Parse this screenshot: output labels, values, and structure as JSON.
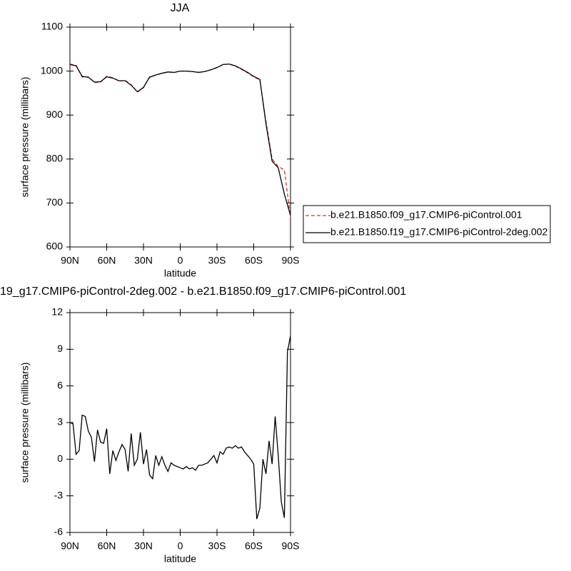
{
  "chart_data": [
    {
      "type": "line",
      "title": "JJA",
      "x_label": "latitude",
      "y_label": "surface pressure (millibars)",
      "x": [
        90,
        85,
        80,
        75,
        70,
        65,
        60,
        55,
        50,
        45,
        40,
        35,
        30,
        25,
        20,
        15,
        10,
        5,
        0,
        -5,
        -10,
        -15,
        -20,
        -25,
        -30,
        -35,
        -40,
        -45,
        -50,
        -55,
        -60,
        -65,
        -70,
        -75,
        -80,
        -85,
        -90
      ],
      "series": [
        {
          "name": "b.e21.B1850.f09_g17.CMIP6-piControl.001",
          "color": "#e03030",
          "dash": true,
          "values": [
            1016,
            1013,
            986,
            987,
            974,
            975,
            988,
            985,
            977,
            979,
            969,
            952,
            962,
            987,
            991,
            995,
            998,
            997,
            1000,
            1000,
            999,
            997,
            999,
            1003,
            1008,
            1015,
            1016,
            1011,
            1004,
            996,
            987,
            980,
            885,
            800,
            783,
            775,
            668
          ]
        },
        {
          "name": "b.e21.B1850.f19_g17.CMIP6-piControl-2deg.002",
          "color": "#000000",
          "dash": false,
          "values": [
            1015,
            1012,
            988,
            986,
            975,
            976,
            987,
            984,
            978,
            978,
            968,
            953,
            963,
            986,
            991,
            995,
            998,
            997,
            1000,
            1000,
            999,
            997,
            999,
            1003,
            1008,
            1015,
            1016,
            1012,
            1005,
            997,
            988,
            981,
            880,
            795,
            780,
            720,
            672
          ]
        }
      ],
      "xlim": [
        90,
        -90
      ],
      "ylim": [
        600,
        1100
      ],
      "xticks": [
        {
          "value": 90,
          "label": "90N"
        },
        {
          "value": 60,
          "label": "60N"
        },
        {
          "value": 30,
          "label": "30N"
        },
        0,
        {
          "value": -30,
          "label": "30S"
        },
        {
          "value": -60,
          "label": "60S"
        },
        {
          "value": -90,
          "label": "90S"
        }
      ],
      "yticks": [
        600,
        700,
        800,
        900,
        1000,
        1100
      ]
    },
    {
      "type": "line",
      "title": "19_g17.CMIP6-piControl-2deg.002 - b.e21.B1850.f09_g17.CMIP6-piControl.001",
      "x_label": "latitude",
      "y_label": "surface pressure (millibars)",
      "x": [
        90,
        87.5,
        85,
        82.5,
        80,
        77.5,
        75,
        72.5,
        70,
        67.5,
        65,
        62.5,
        60,
        57.5,
        55,
        52.5,
        50,
        47.5,
        45,
        42.5,
        40,
        37.5,
        35,
        32.5,
        30,
        27.5,
        25,
        22.5,
        20,
        17.5,
        15,
        12.5,
        10,
        7.5,
        5,
        2.5,
        0,
        -2.5,
        -5,
        -7.5,
        -10,
        -12.5,
        -15,
        -17.5,
        -20,
        -22.5,
        -25,
        -27.5,
        -30,
        -32.5,
        -35,
        -37.5,
        -40,
        -42.5,
        -45,
        -47.5,
        -50,
        -52.5,
        -55,
        -57.5,
        -60,
        -62.5,
        -65,
        -67.5,
        -70,
        -72.5,
        -75,
        -77.5,
        -80,
        -82.5,
        -85,
        -87.5,
        -90
      ],
      "series": [
        {
          "color": "#000000",
          "dash": false,
          "values": [
            3.0,
            2.9,
            0.4,
            0.7,
            3.6,
            3.5,
            2.3,
            1.8,
            -0.2,
            2.4,
            1.4,
            1.3,
            2.5,
            -1.2,
            0.7,
            -0.1,
            0.6,
            1.2,
            0.8,
            -1.0,
            2.1,
            -0.5,
            0.0,
            2.2,
            -0.4,
            0.8,
            -1.3,
            -1.6,
            0.3,
            -0.5,
            0.2,
            -0.5,
            -1.0,
            -0.3,
            -0.5,
            -0.6,
            -0.7,
            -0.8,
            -0.6,
            -0.8,
            -0.7,
            -0.9,
            -0.5,
            -0.5,
            -0.4,
            -0.3,
            0.0,
            0.3,
            -0.3,
            0.6,
            0.4,
            0.9,
            1.0,
            0.9,
            1.1,
            0.9,
            1.0,
            0.6,
            0.3,
            0.0,
            -0.4,
            -4.9,
            -4.0,
            0.0,
            -1.2,
            1.5,
            -0.4,
            3.5,
            0.3,
            -3.5,
            -4.8,
            8.8,
            10.1
          ]
        }
      ],
      "xlim": [
        90,
        -90
      ],
      "ylim": [
        -6,
        12
      ],
      "xticks": [
        {
          "value": 90,
          "label": "90N"
        },
        {
          "value": 60,
          "label": "60N"
        },
        {
          "value": 30,
          "label": "30N"
        },
        0,
        {
          "value": -30,
          "label": "30S"
        },
        {
          "value": -60,
          "label": "60S"
        },
        {
          "value": -90,
          "label": "90S"
        }
      ],
      "yticks": [
        -6,
        -3,
        0,
        3,
        6,
        9,
        12
      ]
    }
  ]
}
